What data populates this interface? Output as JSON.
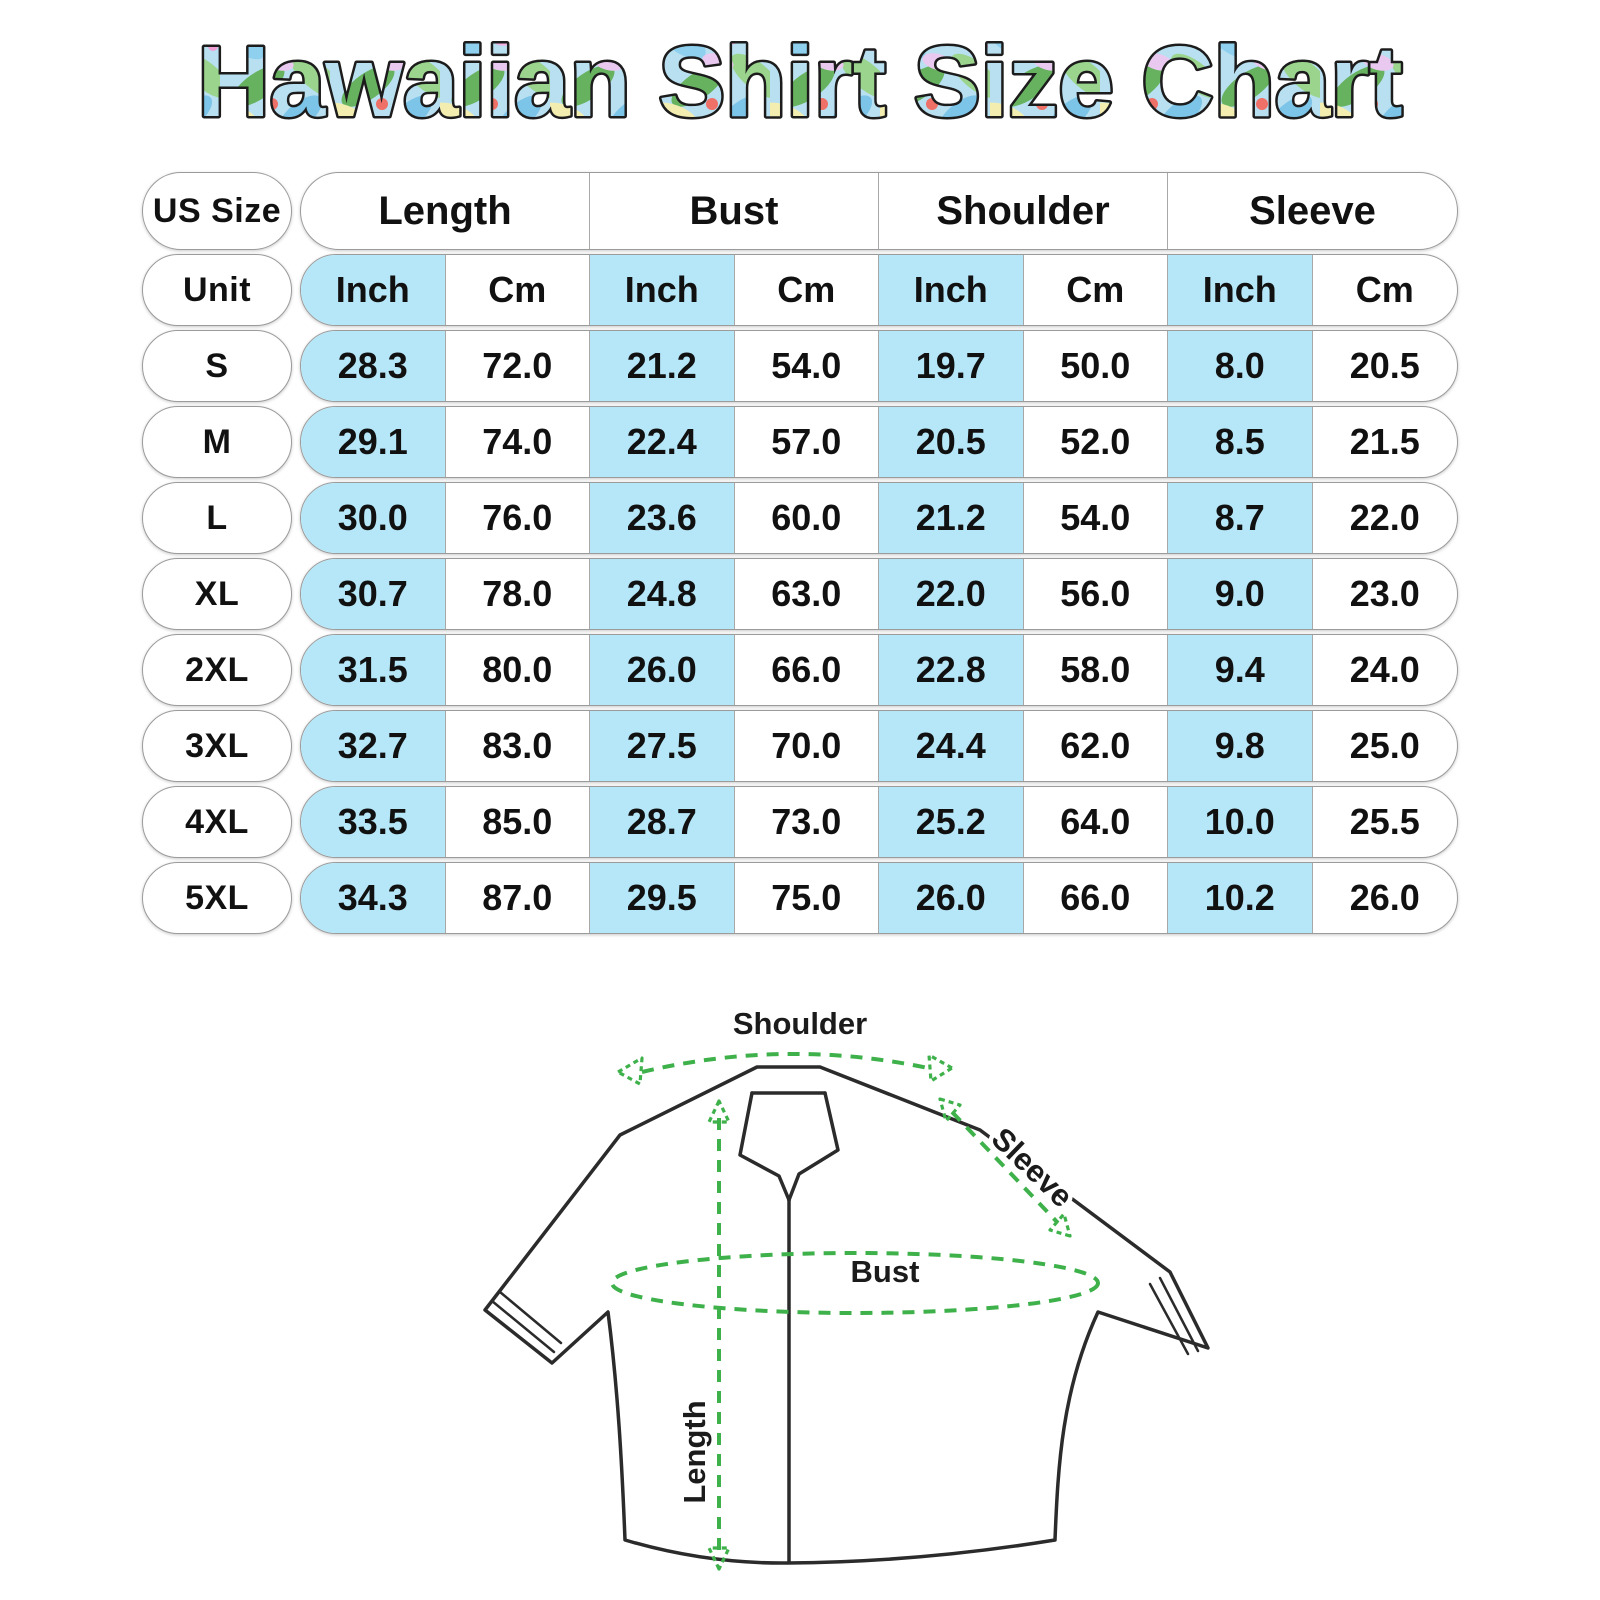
{
  "title": "Hawaiian Shirt Size Chart",
  "colors": {
    "highlight_blue": "#b6e7f8",
    "pill_border": "#9b9b9b",
    "measure_green": "#3eb14b",
    "outline_black": "#2b2b2b",
    "text_black": "#111111"
  },
  "table": {
    "corner_label": "US Size",
    "unit_label": "Unit",
    "group_headers": [
      "Length",
      "Bust",
      "Shoulder",
      "Sleeve"
    ],
    "unit_headers": [
      "Inch",
      "Cm",
      "Inch",
      "Cm",
      "Inch",
      "Cm",
      "Inch",
      "Cm"
    ],
    "rows": [
      {
        "size": "S",
        "values": [
          "28.3",
          "72.0",
          "21.2",
          "54.0",
          "19.7",
          "50.0",
          "8.0",
          "20.5"
        ]
      },
      {
        "size": "M",
        "values": [
          "29.1",
          "74.0",
          "22.4",
          "57.0",
          "20.5",
          "52.0",
          "8.5",
          "21.5"
        ]
      },
      {
        "size": "L",
        "values": [
          "30.0",
          "76.0",
          "23.6",
          "60.0",
          "21.2",
          "54.0",
          "8.7",
          "22.0"
        ]
      },
      {
        "size": "XL",
        "values": [
          "30.7",
          "78.0",
          "24.8",
          "63.0",
          "22.0",
          "56.0",
          "9.0",
          "23.0"
        ]
      },
      {
        "size": "2XL",
        "values": [
          "31.5",
          "80.0",
          "26.0",
          "66.0",
          "22.8",
          "58.0",
          "9.4",
          "24.0"
        ]
      },
      {
        "size": "3XL",
        "values": [
          "32.7",
          "83.0",
          "27.5",
          "70.0",
          "24.4",
          "62.0",
          "9.8",
          "25.0"
        ]
      },
      {
        "size": "4XL",
        "values": [
          "33.5",
          "85.0",
          "28.7",
          "73.0",
          "25.2",
          "64.0",
          "10.0",
          "25.5"
        ]
      },
      {
        "size": "5XL",
        "values": [
          "34.3",
          "87.0",
          "29.5",
          "75.0",
          "26.0",
          "66.0",
          "10.2",
          "26.0"
        ]
      }
    ]
  },
  "diagram": {
    "labels": {
      "shoulder": "Shoulder",
      "sleeve": "Sleeve",
      "bust": "Bust",
      "length": "Length"
    }
  },
  "chart_data": {
    "type": "table",
    "title": "Hawaiian Shirt Size Chart",
    "columns": [
      "US Size",
      "Length (Inch)",
      "Length (Cm)",
      "Bust (Inch)",
      "Bust (Cm)",
      "Shoulder (Inch)",
      "Shoulder (Cm)",
      "Sleeve (Inch)",
      "Sleeve (Cm)"
    ],
    "rows": [
      [
        "S",
        28.3,
        72.0,
        21.2,
        54.0,
        19.7,
        50.0,
        8.0,
        20.5
      ],
      [
        "M",
        29.1,
        74.0,
        22.4,
        57.0,
        20.5,
        52.0,
        8.5,
        21.5
      ],
      [
        "L",
        30.0,
        76.0,
        23.6,
        60.0,
        21.2,
        54.0,
        8.7,
        22.0
      ],
      [
        "XL",
        30.7,
        78.0,
        24.8,
        63.0,
        22.0,
        56.0,
        9.0,
        23.0
      ],
      [
        "2XL",
        31.5,
        80.0,
        26.0,
        66.0,
        22.8,
        58.0,
        9.4,
        24.0
      ],
      [
        "3XL",
        32.7,
        83.0,
        27.5,
        70.0,
        24.4,
        62.0,
        9.8,
        25.0
      ],
      [
        "4XL",
        33.5,
        85.0,
        28.7,
        73.0,
        25.2,
        64.0,
        10.0,
        25.5
      ],
      [
        "5XL",
        34.3,
        87.0,
        29.5,
        75.0,
        26.0,
        66.0,
        10.2,
        26.0
      ]
    ]
  }
}
